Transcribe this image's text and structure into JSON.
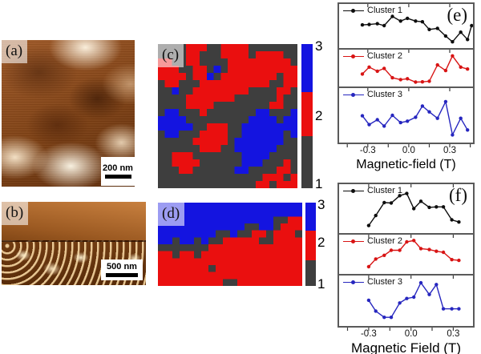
{
  "figure": {
    "panel_a": {
      "label": "(a)",
      "scalebar": "200 nm"
    },
    "panel_b": {
      "label": "(b)",
      "scalebar": "500 nm"
    },
    "panel_c": {
      "label": "(c)",
      "colorbar_labels": [
        "3",
        "2",
        "1"
      ],
      "grid": [
        "ggggrrrggrrrrggggggg",
        "ggggrrgggrrrrgrrrrgg",
        "rrggrrggggrrrrrrrrrg",
        "rrrggrrgbgrrrrrrrrrr",
        "rrrrgrrbgrrrrrrrrgrr",
        "grrgggrrrrrrrrrrggrr",
        "ggbggrrrrrrrrggggrrg",
        "ggggrrrrrrrggggggrgg",
        "ggggrrrrggggggggrrgg",
        "gbbgggrgggggggbbgggb",
        "bbbbgggggggggbbbbgbb",
        "bbbbbggrrrggbbbbbbbb",
        "gbbgggrrrrggbbbbbbgb",
        "gggggrrrrrgbbbbbbbgg",
        "ggggggrrrggbbbbbbggg",
        "ggrrrgggggggbbbbgggg",
        "ggrrrrggggggbbbgggrg",
        "gggrrggggggbbggggrrg",
        "gggggggggggggggrrrgr",
        "ggggggggggggggrrgrrr"
      ]
    },
    "panel_d": {
      "label": "(d)",
      "colorbar_labels": [
        "3",
        "2",
        "1"
      ],
      "grid": [
        "bbbbbbbbbbbbbbbbbbbb",
        "bbbbbbbbbbbbbbbbbbbb",
        "bbbbbbbbbbbbbbbbggrr",
        "bbbbbbbbbbbbggbbgrrr",
        "bbbbbbbbggbggrrgrrrg",
        "bbgbbgbggrrrrrggrrrr",
        "gggggggrrrrrrrrrrrrr",
        "rrgrrgrrrrrrrrrrrrrr",
        "rrrrrrrrrrrrrrrrrrrr",
        "rrrrrrrgrrrrrrrrrrrr",
        "rrrrrrrrrrrrrrrrrrrr",
        "rrrrrrrrrggrrrrrrrrr"
      ]
    }
  },
  "chart_data": [
    {
      "type": "line",
      "corner_label": "(e)",
      "xlabel": "Magnetic-field (T)",
      "ylabel": "",
      "y_units": "arbitrary units (no y-axis scale shown); y given as fraction of subplot height",
      "xlim": [
        -0.51,
        0.47
      ],
      "xticks": [
        -0.3,
        0.0,
        0.3
      ],
      "xtick_labels": [
        "-0.3",
        "0.0",
        "0.3"
      ],
      "xticks_minor": [
        -0.45,
        -0.3,
        -0.15,
        0.0,
        0.15,
        0.3,
        0.45
      ],
      "grid_lines": "off",
      "legend_position": "top-left",
      "series": [
        {
          "name": "Cluster 1",
          "color_key": "black",
          "x": [
            -0.34,
            -0.29,
            -0.23,
            -0.18,
            -0.12,
            -0.06,
            -0.01,
            0.05,
            0.1,
            0.15,
            0.21,
            0.27,
            0.32,
            0.38,
            0.43,
            0.46
          ],
          "y": [
            0.53,
            0.54,
            0.56,
            0.51,
            0.75,
            0.63,
            0.7,
            0.63,
            0.61,
            0.41,
            0.44,
            0.24,
            0.09,
            0.34,
            0.15,
            0.51
          ]
        },
        {
          "name": "Cluster 2",
          "color_key": "red",
          "x": [
            -0.34,
            -0.29,
            -0.23,
            -0.18,
            -0.12,
            -0.06,
            -0.01,
            0.05,
            0.1,
            0.15,
            0.21,
            0.27,
            0.32,
            0.38,
            0.43
          ],
          "y": [
            0.31,
            0.53,
            0.4,
            0.49,
            0.19,
            0.13,
            0.16,
            0.05,
            0.06,
            0.08,
            0.6,
            0.42,
            0.89,
            0.53,
            0.47
          ]
        },
        {
          "name": "Cluster 3",
          "color_key": "blue",
          "x": [
            -0.34,
            -0.29,
            -0.23,
            -0.18,
            -0.12,
            -0.06,
            -0.01,
            0.05,
            0.1,
            0.15,
            0.21,
            0.27,
            0.32,
            0.38,
            0.43
          ],
          "y": [
            0.49,
            0.31,
            0.41,
            0.28,
            0.5,
            0.35,
            0.38,
            0.46,
            0.69,
            0.57,
            0.44,
            0.78,
            0.1,
            0.44,
            0.2
          ]
        }
      ]
    },
    {
      "type": "line",
      "corner_label": "(f)",
      "xlabel": "Magnetic Field (T)",
      "ylabel": "",
      "y_units": "arbitrary units (no y-axis scale shown); y given as fraction of subplot height",
      "xlim": [
        -0.51,
        0.44
      ],
      "xticks": [
        -0.3,
        0.0,
        0.3
      ],
      "xtick_labels": [
        "-0.3",
        "0.0",
        "0.3"
      ],
      "xticks_minor": [
        -0.45,
        -0.3,
        -0.15,
        0.0,
        0.15,
        0.3,
        0.45
      ],
      "grid_lines": "off",
      "legend_position": "top-left",
      "series": [
        {
          "name": "Cluster 1",
          "color_key": "black",
          "x": [
            -0.3,
            -0.25,
            -0.19,
            -0.14,
            -0.08,
            -0.03,
            0.02,
            0.07,
            0.13,
            0.18,
            0.23,
            0.29,
            0.34
          ],
          "y": [
            0.11,
            0.34,
            0.64,
            0.63,
            0.8,
            0.85,
            0.5,
            0.67,
            0.53,
            0.54,
            0.54,
            0.24,
            0.19
          ]
        },
        {
          "name": "Cluster 2",
          "color_key": "red",
          "x": [
            -0.3,
            -0.25,
            -0.19,
            -0.14,
            -0.08,
            -0.03,
            0.02,
            0.07,
            0.13,
            0.18,
            0.23,
            0.29,
            0.34
          ],
          "y": [
            0.13,
            0.36,
            0.47,
            0.62,
            0.62,
            0.87,
            0.91,
            0.67,
            0.64,
            0.59,
            0.56,
            0.34,
            0.32
          ]
        },
        {
          "name": "Cluster 3",
          "color_key": "blue",
          "x": [
            -0.3,
            -0.25,
            -0.19,
            -0.14,
            -0.08,
            -0.03,
            0.02,
            0.07,
            0.13,
            0.18,
            0.23,
            0.29,
            0.34
          ],
          "y": [
            0.51,
            0.27,
            0.13,
            0.13,
            0.45,
            0.55,
            0.58,
            0.9,
            0.64,
            0.86,
            0.32,
            0.32,
            0.32
          ]
        }
      ]
    }
  ],
  "colors": {
    "cluster_gray": "#3e3e3e",
    "cluster_red": "#ea0f0f",
    "cluster_blue": "#1414e0",
    "series_black": "#0d0d0d",
    "series_red": "#d81414",
    "series_blue": "#2626bf",
    "axis": "#3c3c3c"
  }
}
